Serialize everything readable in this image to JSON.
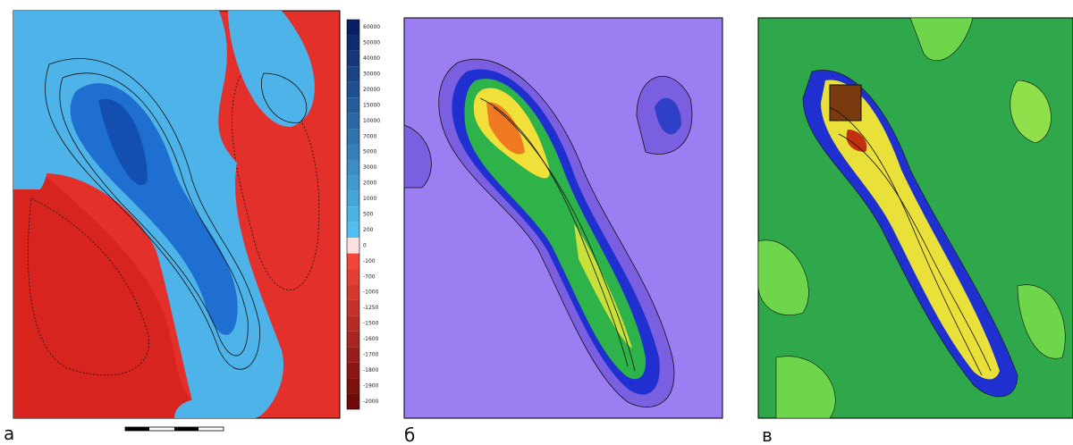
{
  "panels": [
    {
      "label": "а"
    },
    {
      "label": "б"
    },
    {
      "label": "в"
    }
  ],
  "colorbar": {
    "labels": [
      60000,
      50000,
      40000,
      30000,
      20000,
      15000,
      10000,
      7000,
      5000,
      3000,
      2000,
      1000,
      500,
      200,
      0,
      -100,
      -700,
      -1000,
      -1250,
      -1500,
      -1600,
      -1700,
      -1800,
      -1900,
      -2000
    ]
  }
}
